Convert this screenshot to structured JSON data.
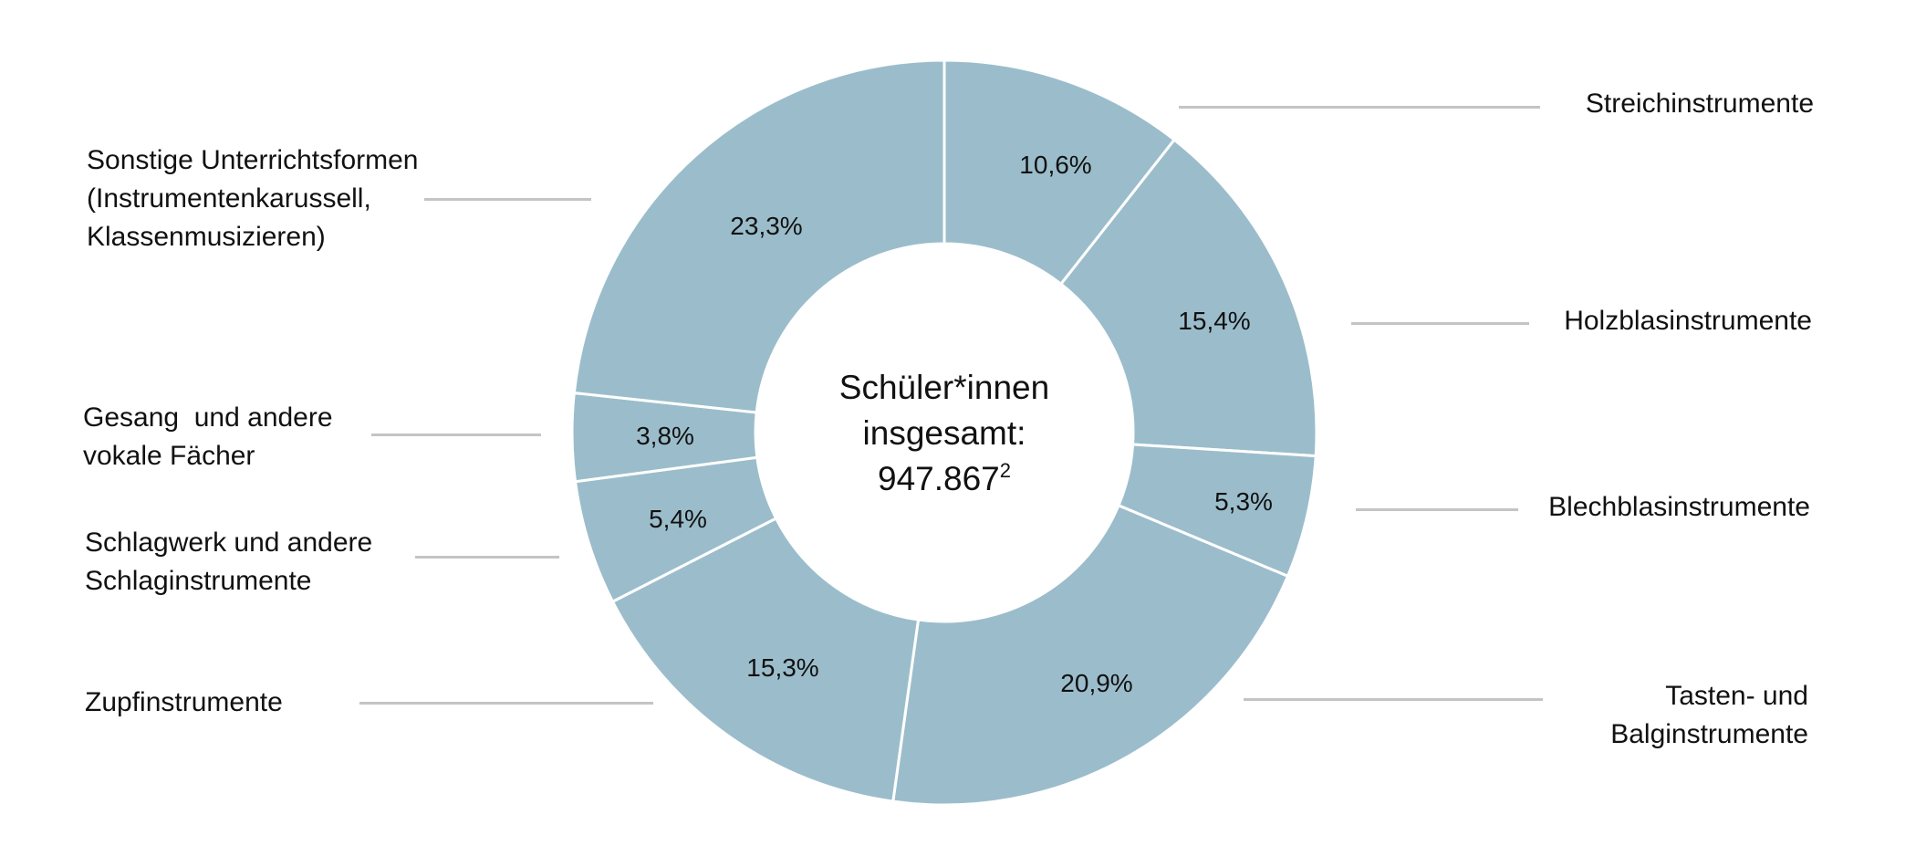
{
  "chart_data": {
    "type": "pie",
    "subtype": "donut",
    "title": "",
    "center_label": {
      "line1": "Schüler*innen",
      "line2": "insgesamt:",
      "value": "947.867",
      "footnote": "2"
    },
    "start_angle_deg": 0,
    "direction": "clockwise",
    "colors": {
      "slice_fill": "#9bbdcb",
      "separator": "#ffffff",
      "leader_line": "#c4c4c4",
      "text": "#111111"
    },
    "categories": [
      "Streichinstrumente",
      "Holzblasinstrumente",
      "Blechblasinstrumente",
      "Tasten- und Balginstrumente",
      "Zupfinstrumente",
      "Schlagwerk und andere Schlaginstrumente",
      "Gesang  und andere vokale Fächer",
      "Sonstige Unterrichtsformen (Instrumentenkarussell, Klassenmusizieren)"
    ],
    "values": [
      10.6,
      15.4,
      5.3,
      20.9,
      15.3,
      5.4,
      3.8,
      23.3
    ],
    "value_labels": [
      "10,6%",
      "15,4%",
      "5,3%",
      "20,9%",
      "15,3%",
      "5,4%",
      "3,8%",
      "23,3%"
    ],
    "unit": "%",
    "legend_position": "outside labels with leader lines"
  },
  "labels": {
    "streich": "Streichinstrumente",
    "holzblas": "Holzblasinstrumente",
    "blechblas": "Blechblasinstrumente",
    "tasten": "Tasten- und\nBalginstrumente",
    "zupf": "Zupfinstrumente",
    "schlagwerk": "Schlagwerk und andere\nSchlaginstrumente",
    "gesang": "Gesang  und andere\nvokale Fächer",
    "sonstige": "Sonstige Unterrichtsformen\n(Instrumentenkarussell,\nKlassenmusizieren)"
  },
  "center": {
    "line1": "Schüler*innen",
    "line2": "insgesamt:",
    "value": "947.867",
    "footnote": "2"
  }
}
